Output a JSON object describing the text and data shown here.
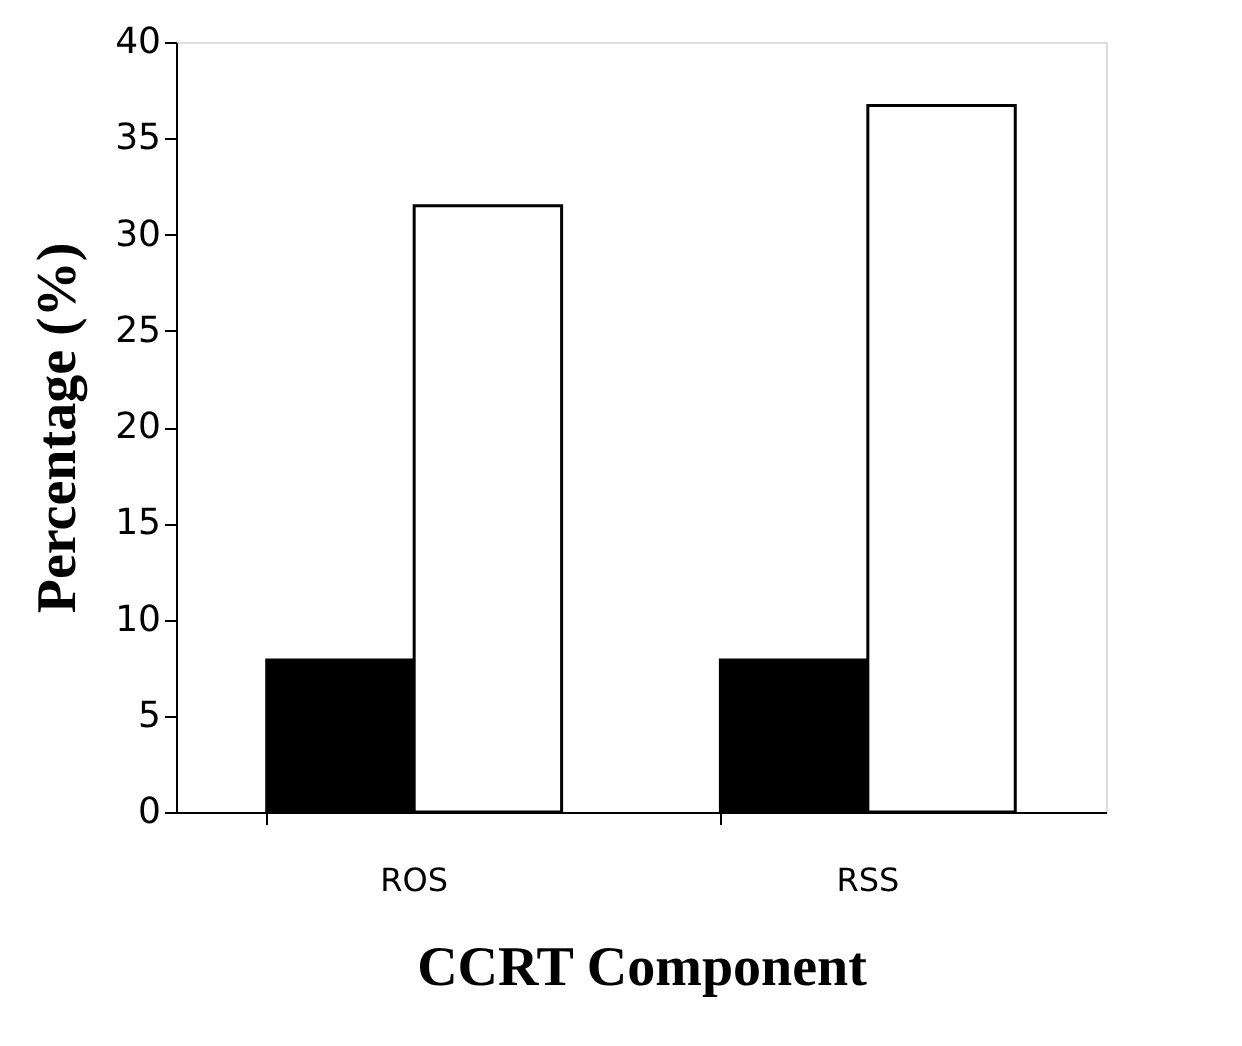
{
  "chart_data": {
    "type": "bar",
    "xlabel": "CCRT Component",
    "ylabel": "Percentage (%)",
    "categories": [
      "ROS",
      "RSS"
    ],
    "series": [
      {
        "color": "#000000",
        "values": [
          7.9,
          7.9
        ]
      },
      {
        "color": "#ffffff",
        "values": [
          31.5,
          36.7
        ]
      }
    ],
    "ylim": [
      0,
      40
    ],
    "yticks": [
      0,
      5,
      10,
      15,
      20,
      25,
      30,
      35,
      40
    ],
    "grid": false,
    "legend": false
  }
}
